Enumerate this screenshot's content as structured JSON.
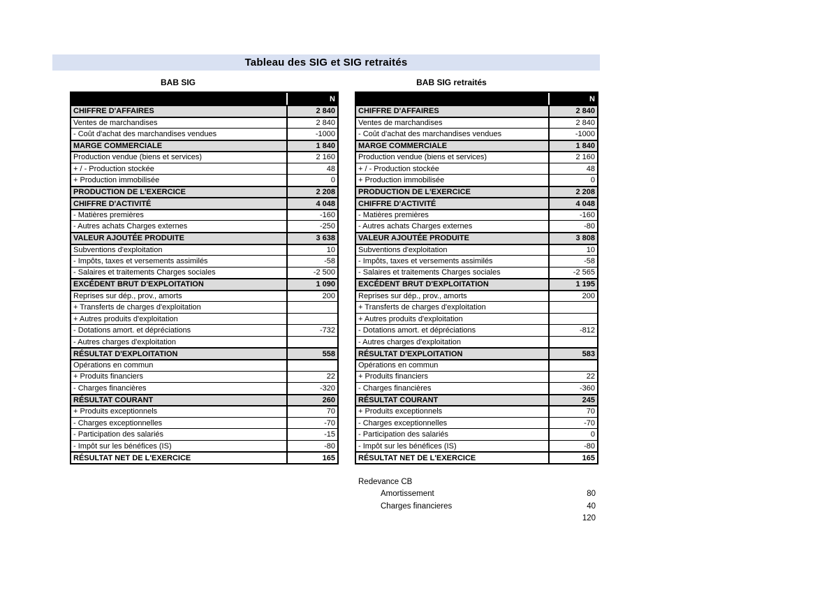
{
  "page": {
    "title": "Tableau des SIG et SIG retraités"
  },
  "colors": {
    "title_bar_bg": "#d9e1f2",
    "section_row_bg": "#dcdcdc",
    "header_row_bg": "#000000",
    "header_row_text": "#ffffff"
  },
  "tables": [
    {
      "title": "BAB SIG",
      "column_header": "N",
      "rows": [
        {
          "label": "CHIFFRE D'AFFAIRES",
          "value": "2 840",
          "type": "section"
        },
        {
          "label": "Ventes de marchandises",
          "value": "2 840",
          "type": "normal"
        },
        {
          "label": "- Coût d'achat des marchandises vendues",
          "value": "-1000",
          "type": "normal"
        },
        {
          "label": "MARGE COMMERCIALE",
          "value": "1 840",
          "type": "section"
        },
        {
          "label": "Production vendue (biens et services)",
          "value": "2 160",
          "type": "normal"
        },
        {
          "label": "+ / - Production stockée",
          "value": "48",
          "type": "normal"
        },
        {
          "label": "+ Production immobilisée",
          "value": "0",
          "type": "normal"
        },
        {
          "label": "PRODUCTION DE L'EXERCICE",
          "value": "2 208",
          "type": "section"
        },
        {
          "label": "CHIFFRE D'ACTIVITÉ",
          "value": "4 048",
          "type": "section"
        },
        {
          "label": "- Matières premières",
          "value": "-160",
          "type": "normal"
        },
        {
          "label": "- Autres achats Charges externes",
          "value": "-250",
          "type": "normal"
        },
        {
          "label": "VALEUR AJOUTÉE PRODUITE",
          "value": "3 638",
          "type": "section"
        },
        {
          "label": "Subventions d'exploitation",
          "value": "10",
          "type": "normal"
        },
        {
          "label": "- Impôts, taxes et versements assimilés",
          "value": "-58",
          "type": "normal"
        },
        {
          "label": "- Salaires et traitements Charges sociales",
          "value": "-2 500",
          "type": "normal"
        },
        {
          "label": "EXCÉDENT BRUT D'EXPLOITATION",
          "value": "1 090",
          "type": "section"
        },
        {
          "label": "Reprises sur dép., prov., amorts",
          "value": "200",
          "type": "normal"
        },
        {
          "label": "+ Transferts de charges d'exploitation",
          "value": "",
          "type": "normal"
        },
        {
          "label": "+ Autres produits d'exploitation",
          "value": "",
          "type": "normal"
        },
        {
          "label": "- Dotations amort. et dépréciations",
          "value": "-732",
          "type": "normal"
        },
        {
          "label": "- Autres charges d'exploitation",
          "value": "",
          "type": "normal"
        },
        {
          "label": "RÉSULTAT D'EXPLOITATION",
          "value": "558",
          "type": "section"
        },
        {
          "label": "Opérations en commun",
          "value": "",
          "type": "normal"
        },
        {
          "label": "+ Produits financiers",
          "value": "22",
          "type": "normal"
        },
        {
          "label": "- Charges financières",
          "value": "-320",
          "type": "normal"
        },
        {
          "label": "RÉSULTAT COURANT",
          "value": "260",
          "type": "section"
        },
        {
          "label": "+ Produits exceptionnels",
          "value": "70",
          "type": "normal"
        },
        {
          "label": "- Charges exceptionnelles",
          "value": "-70",
          "type": "normal"
        },
        {
          "label": "- Participation des salariés",
          "value": "-15",
          "type": "normal"
        },
        {
          "label": "- Impôt sur les bénéfices (IS)",
          "value": "-80",
          "type": "normal"
        },
        {
          "label": "RÉSULTAT NET DE L'EXERCICE",
          "value": "165",
          "type": "total"
        }
      ]
    },
    {
      "title": "BAB SIG retraités",
      "column_header": "N",
      "rows": [
        {
          "label": "CHIFFRE D'AFFAIRES",
          "value": "2 840",
          "type": "section"
        },
        {
          "label": "Ventes de marchandises",
          "value": "2 840",
          "type": "normal"
        },
        {
          "label": "- Coût d'achat des marchandises vendues",
          "value": "-1000",
          "type": "normal"
        },
        {
          "label": "MARGE COMMERCIALE",
          "value": "1 840",
          "type": "section"
        },
        {
          "label": "Production vendue (biens et services)",
          "value": "2 160",
          "type": "normal"
        },
        {
          "label": "+ / - Production stockée",
          "value": "48",
          "type": "normal"
        },
        {
          "label": "+ Production immobilisée",
          "value": "0",
          "type": "normal"
        },
        {
          "label": "PRODUCTION DE L'EXERCICE",
          "value": "2 208",
          "type": "section"
        },
        {
          "label": "CHIFFRE D'ACTIVITÉ",
          "value": "4 048",
          "type": "section"
        },
        {
          "label": "- Matières premières",
          "value": "-160",
          "type": "normal"
        },
        {
          "label": "- Autres achats Charges externes",
          "value": "-80",
          "type": "normal"
        },
        {
          "label": "VALEUR AJOUTÉE PRODUITE",
          "value": "3 808",
          "type": "section"
        },
        {
          "label": "Subventions d'exploitation",
          "value": "10",
          "type": "normal"
        },
        {
          "label": "- Impôts, taxes et versements assimilés",
          "value": "-58",
          "type": "normal"
        },
        {
          "label": "- Salaires et traitements Charges sociales",
          "value": "-2 565",
          "type": "normal"
        },
        {
          "label": "EXCÉDENT BRUT D'EXPLOITATION",
          "value": "1 195",
          "type": "section"
        },
        {
          "label": "Reprises sur dép., prov., amorts",
          "value": "200",
          "type": "normal"
        },
        {
          "label": "+ Transferts de charges d'exploitation",
          "value": "",
          "type": "normal"
        },
        {
          "label": "+ Autres produits d'exploitation",
          "value": "",
          "type": "normal"
        },
        {
          "label": "- Dotations amort. et dépréciations",
          "value": "-812",
          "type": "normal"
        },
        {
          "label": "- Autres charges d'exploitation",
          "value": "",
          "type": "normal"
        },
        {
          "label": "RÉSULTAT D'EXPLOITATION",
          "value": "583",
          "type": "section"
        },
        {
          "label": "Opérations en commun",
          "value": "",
          "type": "normal"
        },
        {
          "label": "+ Produits financiers",
          "value": "22",
          "type": "normal"
        },
        {
          "label": "- Charges financières",
          "value": "-360",
          "type": "normal"
        },
        {
          "label": "RÉSULTAT COURANT",
          "value": "245",
          "type": "section"
        },
        {
          "label": "+ Produits exceptionnels",
          "value": "70",
          "type": "normal"
        },
        {
          "label": "- Charges exceptionnelles",
          "value": "-70",
          "type": "normal"
        },
        {
          "label": "- Participation des salariés",
          "value": "0",
          "type": "normal"
        },
        {
          "label": "- Impôt sur les bénéfices (IS)",
          "value": "-80",
          "type": "normal"
        },
        {
          "label": "RÉSULTAT NET DE L'EXERCICE",
          "value": "165",
          "type": "total"
        }
      ]
    }
  ],
  "footnote": {
    "title": "Redevance CB",
    "items": [
      {
        "label": "Amortissement",
        "value": "80"
      },
      {
        "label": "Charges financieres",
        "value": "40"
      }
    ],
    "total": "120"
  }
}
